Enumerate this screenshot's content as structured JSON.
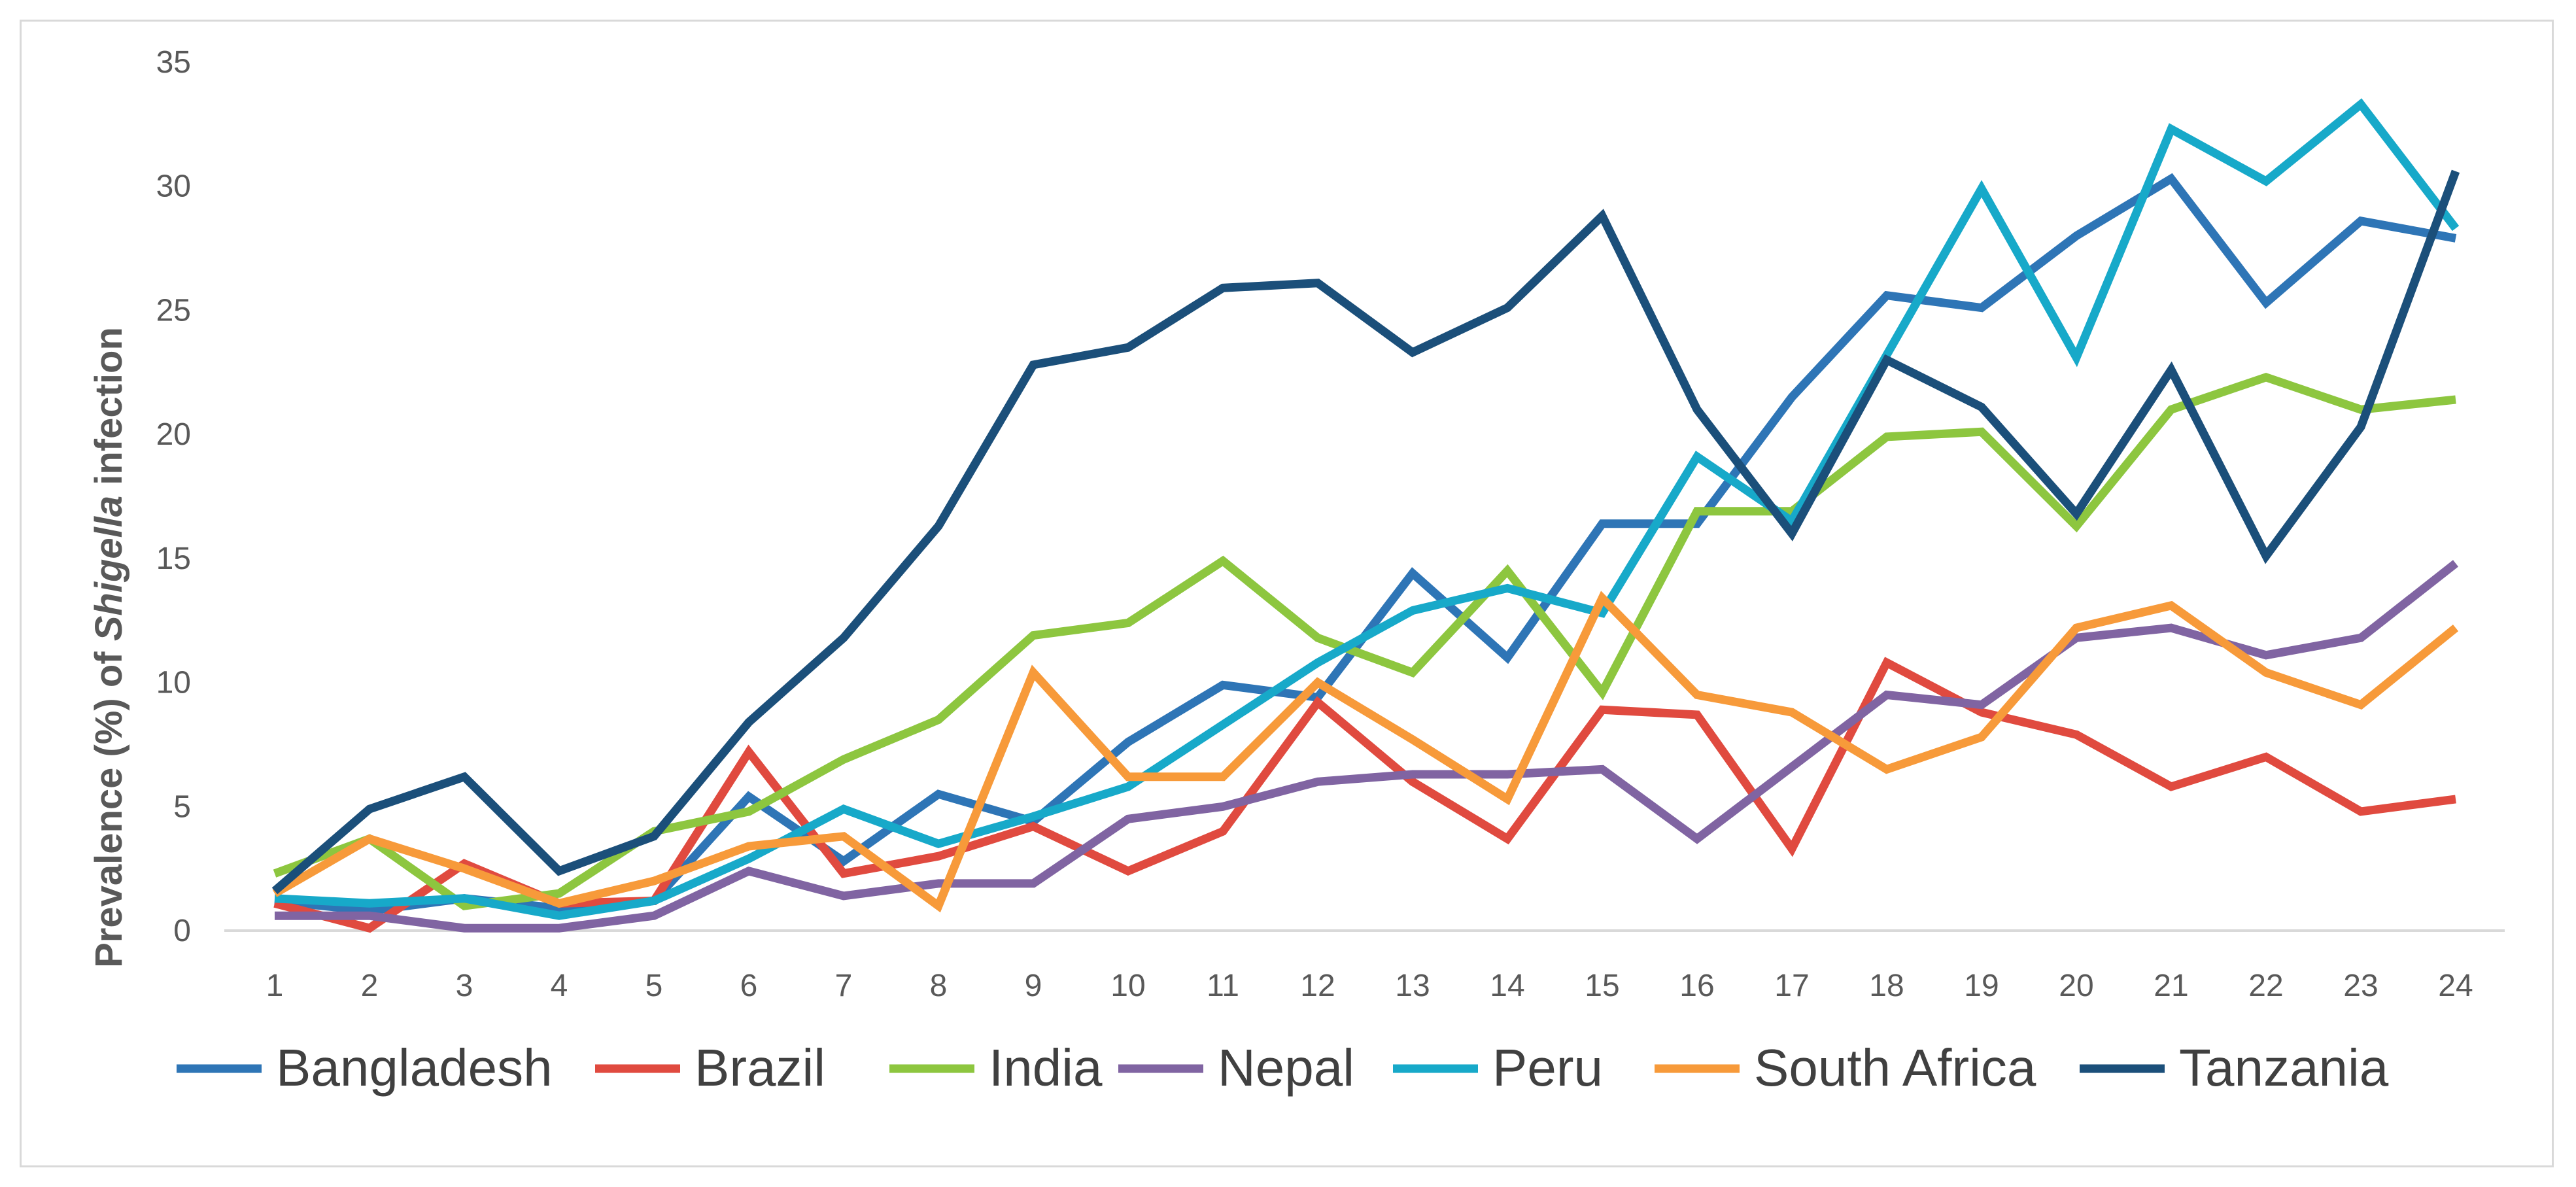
{
  "chart_data": {
    "type": "line",
    "title": "",
    "xlabel": "",
    "ylabel": {
      "prefix": "Prevalence (%) of ",
      "italic": "Shigella",
      "suffix": " infection"
    },
    "ylim": [
      0,
      35
    ],
    "yticks": [
      0,
      5,
      10,
      15,
      20,
      25,
      30,
      35
    ],
    "grid": false,
    "legend_position": "bottom",
    "x": [
      1,
      2,
      3,
      4,
      5,
      6,
      7,
      8,
      9,
      10,
      11,
      12,
      13,
      14,
      15,
      16,
      17,
      18,
      19,
      20,
      21,
      22,
      23,
      24
    ],
    "series": [
      {
        "name": "Bangladesh",
        "color": "#2e75b6",
        "values": [
          1.2,
          0.8,
          1.3,
          0.9,
          1.2,
          5.4,
          2.8,
          5.5,
          4.4,
          7.6,
          9.9,
          9.4,
          14.4,
          11.0,
          16.4,
          16.4,
          21.5,
          25.6,
          25.1,
          28.0,
          30.3,
          25.3,
          28.6,
          27.9
        ]
      },
      {
        "name": "Brazil",
        "color": "#e04a3f",
        "values": [
          1.1,
          0.1,
          2.7,
          1.1,
          1.2,
          7.2,
          2.3,
          3.0,
          4.2,
          2.4,
          4.0,
          9.2,
          6.0,
          3.7,
          8.9,
          8.7,
          3.3,
          10.8,
          8.8,
          7.9,
          5.8,
          7.0,
          4.8,
          5.3
        ]
      },
      {
        "name": "India",
        "color": "#8dc63f",
        "values": [
          2.3,
          3.7,
          1.0,
          1.5,
          4.0,
          4.8,
          6.9,
          8.5,
          11.9,
          12.4,
          14.9,
          11.8,
          10.4,
          14.5,
          9.6,
          16.9,
          16.9,
          19.9,
          20.1,
          16.3,
          21.0,
          22.3,
          21.0,
          21.4
        ]
      },
      {
        "name": "Nepal",
        "color": "#8064a2",
        "values": [
          0.6,
          0.6,
          0.1,
          0.1,
          0.6,
          2.4,
          1.4,
          1.9,
          1.9,
          4.5,
          5.0,
          6.0,
          6.3,
          6.3,
          6.5,
          3.7,
          6.6,
          9.5,
          9.1,
          11.8,
          12.2,
          11.1,
          11.8,
          14.8
        ]
      },
      {
        "name": "Peru",
        "color": "#17a9c9",
        "values": [
          1.3,
          1.1,
          1.3,
          0.6,
          1.2,
          2.9,
          4.9,
          3.5,
          4.6,
          5.8,
          8.3,
          10.8,
          12.9,
          13.8,
          12.8,
          19.1,
          16.5,
          23.2,
          29.9,
          23.1,
          32.3,
          30.2,
          33.3,
          28.3
        ]
      },
      {
        "name": "South Africa",
        "color": "#f79a3a",
        "values": [
          1.5,
          3.7,
          2.5,
          1.1,
          2.0,
          3.4,
          3.8,
          1.0,
          10.4,
          6.2,
          6.2,
          10.0,
          7.7,
          5.3,
          13.4,
          9.5,
          8.8,
          6.5,
          7.8,
          12.2,
          13.1,
          10.4,
          9.1,
          12.2
        ]
      },
      {
        "name": "Tanzania",
        "color": "#1b4f7a",
        "values": [
          1.6,
          4.9,
          6.2,
          2.4,
          3.8,
          8.4,
          11.8,
          16.3,
          22.8,
          23.5,
          25.9,
          26.1,
          23.3,
          25.1,
          28.8,
          21.0,
          16.0,
          23.0,
          21.1,
          16.8,
          22.6,
          15.1,
          20.3,
          30.6
        ]
      }
    ]
  }
}
